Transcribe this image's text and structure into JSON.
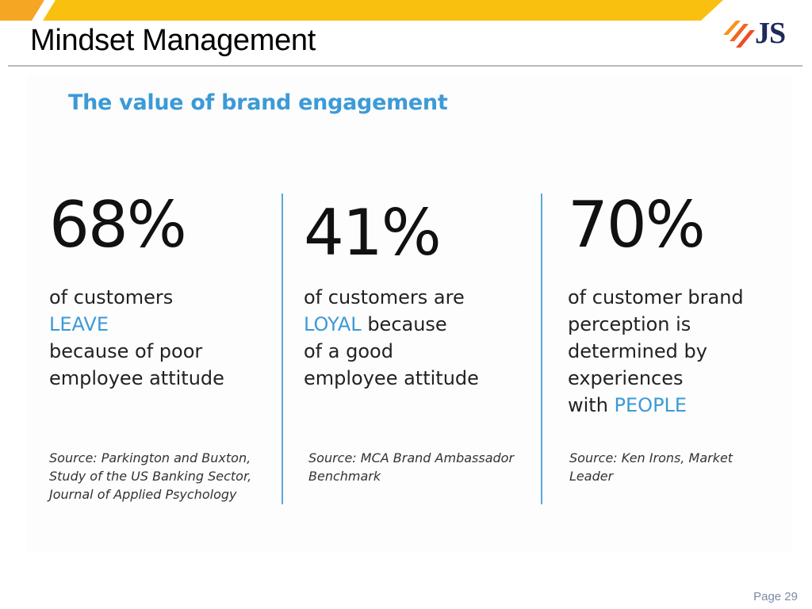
{
  "slide": {
    "title": "Mindset Management",
    "page_number": "Page 29",
    "brand_colors": {
      "accent_orange": "#f5a623",
      "highlight_blue": "#3c9ad6",
      "logo_navy": "#1e2a5a"
    }
  },
  "logo": {
    "text": "JS",
    "icon": "js-slash-logo-icon"
  },
  "panel": {
    "heading": "The value of brand engagement",
    "stats": [
      {
        "percent": "68%",
        "lines": [
          {
            "parts": [
              {
                "text": "of customers",
                "highlight": false
              }
            ]
          },
          {
            "parts": [
              {
                "text": "LEAVE",
                "highlight": true
              }
            ]
          },
          {
            "parts": [
              {
                "text": "because of poor",
                "highlight": false
              }
            ]
          },
          {
            "parts": [
              {
                "text": "employee attitude",
                "highlight": false
              }
            ]
          }
        ],
        "source": [
          "Source: Parkington and Buxton,",
          "Study of the US Banking Sector,",
          "Journal of Applied Psychology"
        ]
      },
      {
        "percent": "41%",
        "lines": [
          {
            "parts": [
              {
                "text": "of customers are",
                "highlight": false
              }
            ]
          },
          {
            "parts": [
              {
                "text": "LOYAL",
                "highlight": true
              },
              {
                "text": " because",
                "highlight": false
              }
            ]
          },
          {
            "parts": [
              {
                "text": "of a good",
                "highlight": false
              }
            ]
          },
          {
            "parts": [
              {
                "text": "employee attitude",
                "highlight": false
              }
            ]
          }
        ],
        "source": [
          "Source: MCA Brand Ambassador",
          "Benchmark"
        ]
      },
      {
        "percent": "70%",
        "lines": [
          {
            "parts": [
              {
                "text": "of customer brand",
                "highlight": false
              }
            ]
          },
          {
            "parts": [
              {
                "text": "perception is",
                "highlight": false
              }
            ]
          },
          {
            "parts": [
              {
                "text": "determined by",
                "highlight": false
              }
            ]
          },
          {
            "parts": [
              {
                "text": "experiences",
                "highlight": false
              }
            ]
          },
          {
            "parts": [
              {
                "text": "with ",
                "highlight": false
              },
              {
                "text": "PEOPLE",
                "highlight": true
              }
            ]
          }
        ],
        "source": [
          "Source: Ken Irons, Market",
          "Leader"
        ]
      }
    ]
  }
}
